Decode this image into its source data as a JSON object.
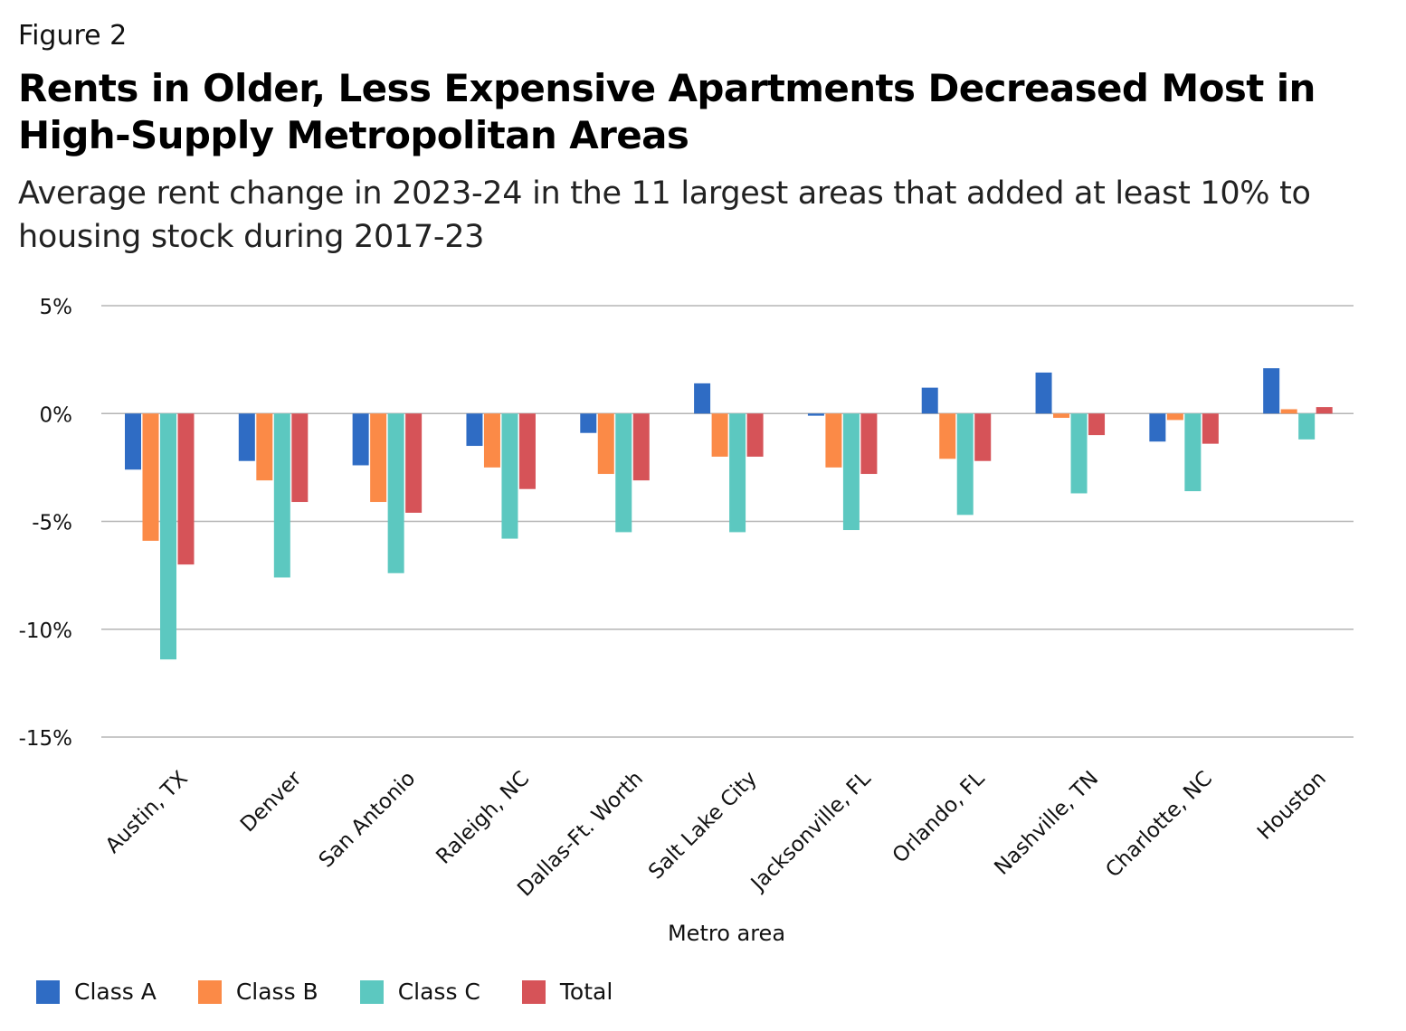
{
  "figure_label": "Figure 2",
  "title": "Rents in Older, Less Expensive Apartments Decreased Most in High-Supply Metropolitan Areas",
  "subtitle": "Average rent change in 2023-24 in the 11 largest areas that added at least 10% to housing stock during 2017-23",
  "chart_data": {
    "type": "bar",
    "title": "Rents in Older, Less Expensive Apartments Decreased Most in High-Supply Metropolitan Areas",
    "subtitle": "Average rent change in 2023-24 in the 11 largest areas that added at least 10% to housing stock during 2017-23",
    "xlabel": "Metro area",
    "ylabel": "",
    "ylim": [
      -15,
      5
    ],
    "yticks": [
      5,
      0,
      -5,
      -10,
      -15
    ],
    "ytick_labels": [
      "5%",
      "0%",
      "-5%",
      "-10%",
      "-15%"
    ],
    "grid": true,
    "legend_position": "bottom-left",
    "categories": [
      "Austin, TX",
      "Denver",
      "San Antonio",
      "Raleigh, NC",
      "Dallas-Ft. Worth",
      "Salt Lake City",
      "Jacksonville, FL",
      "Orlando, FL",
      "Nashville, TN",
      "Charlotte, NC",
      "Houston"
    ],
    "series": [
      {
        "name": "Class A",
        "color": "#2f6cc4",
        "values": [
          -2.6,
          -2.2,
          -2.4,
          -1.5,
          -0.9,
          1.4,
          -0.1,
          1.2,
          1.9,
          -1.3,
          2.1
        ]
      },
      {
        "name": "Class B",
        "color": "#fb8a47",
        "values": [
          -5.9,
          -3.1,
          -4.1,
          -2.5,
          -2.8,
          -2.0,
          -2.5,
          -2.1,
          -0.2,
          -0.3,
          0.2
        ]
      },
      {
        "name": "Class C",
        "color": "#5cc8c0",
        "values": [
          -11.4,
          -7.6,
          -7.4,
          -5.8,
          -5.5,
          -5.5,
          -5.4,
          -4.7,
          -3.7,
          -3.6,
          -1.2
        ]
      },
      {
        "name": "Total",
        "color": "#d65358",
        "values": [
          -7.0,
          -4.1,
          -4.6,
          -3.5,
          -3.1,
          -2.0,
          -2.8,
          -2.2,
          -1.0,
          -1.4,
          0.3
        ]
      }
    ]
  }
}
